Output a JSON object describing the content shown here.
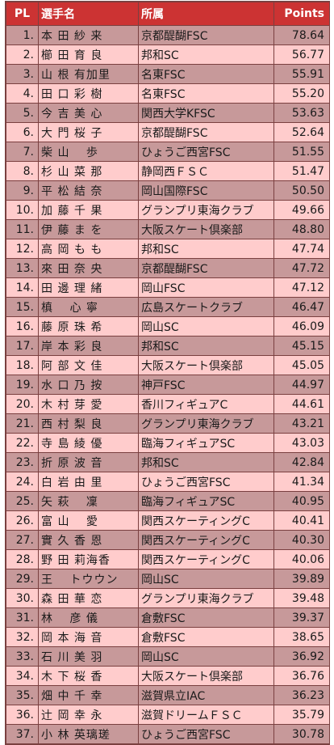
{
  "headers": {
    "pl": "PL",
    "name": "選手名",
    "club": "所属",
    "points": "Points"
  },
  "rows": [
    {
      "pl": "1.",
      "name": "本 田 紗 来",
      "club": "京都醍醐FSC",
      "points": "78.64"
    },
    {
      "pl": "2.",
      "name": "櫛 田 育 良",
      "club": "邦和SC",
      "points": "56.77"
    },
    {
      "pl": "3.",
      "name": "山 根 有加里",
      "club": "名東FSC",
      "points": "55.91"
    },
    {
      "pl": "4.",
      "name": "田 口 彩 樹",
      "club": "名東FSC",
      "points": "55.20"
    },
    {
      "pl": "5.",
      "name": "今 吉 美 心",
      "club": "関西大学KFSC",
      "points": "53.63"
    },
    {
      "pl": "6.",
      "name": "大 門 桜 子",
      "club": "京都醍醐FSC",
      "points": "52.64"
    },
    {
      "pl": "7.",
      "name": "柴 山　 歩",
      "club": "ひょうご西宮FSC",
      "points": "51.55"
    },
    {
      "pl": "8.",
      "name": "杉 山 菜 那",
      "club": "静岡西ＦＳＣ",
      "points": "51.47"
    },
    {
      "pl": "9.",
      "name": "平 松 結 奈",
      "club": "岡山国際FSC",
      "points": "50.50"
    },
    {
      "pl": "10.",
      "name": "加 藤 千 果",
      "club": "グランプリ東海クラブ",
      "points": "49.66"
    },
    {
      "pl": "11.",
      "name": "伊 藤 ま を",
      "club": "大阪スケート倶楽部",
      "points": "48.80"
    },
    {
      "pl": "12.",
      "name": "高 岡 も も",
      "club": "邦和SC",
      "points": "47.74"
    },
    {
      "pl": "13.",
      "name": "來 田 奈 央",
      "club": "京都醍醐FSC",
      "points": "47.72"
    },
    {
      "pl": "14.",
      "name": "田 邊 理 緒",
      "club": "岡山FSC",
      "points": "47.12"
    },
    {
      "pl": "15.",
      "name": "槙　 心 寧",
      "club": "広島スケートクラブ",
      "points": "46.47"
    },
    {
      "pl": "16.",
      "name": "藤 原 珠 希",
      "club": "岡山SC",
      "points": "46.09"
    },
    {
      "pl": "17.",
      "name": "岸 本 彩 良",
      "club": "邦和SC",
      "points": "45.15"
    },
    {
      "pl": "18.",
      "name": "阿 部 文 佳",
      "club": "大阪スケート倶楽部",
      "points": "45.05"
    },
    {
      "pl": "19.",
      "name": "水 口 乃 按",
      "club": "神戸FSC",
      "points": "44.97"
    },
    {
      "pl": "20.",
      "name": "木 村 芽 愛",
      "club": "香川フィギュアC",
      "points": "44.61"
    },
    {
      "pl": "21.",
      "name": "西 村 梨 良",
      "club": "グランプリ東海クラブ",
      "points": "43.21"
    },
    {
      "pl": "22.",
      "name": "寺 島 綾 優",
      "club": "臨海フィギュアSC",
      "points": "43.03"
    },
    {
      "pl": "23.",
      "name": "折 原 波 音",
      "club": "邦和SC",
      "points": "42.84"
    },
    {
      "pl": "24.",
      "name": "白 岩 由 里",
      "club": "ひょうご西宮FSC",
      "points": "41.34"
    },
    {
      "pl": "25.",
      "name": "矢 萩　 凜",
      "club": "臨海フィギュアSC",
      "points": "40.95"
    },
    {
      "pl": "26.",
      "name": "富 山　 愛",
      "club": "関西スケーティングC",
      "points": "40.41"
    },
    {
      "pl": "27.",
      "name": "實 久 香 恩",
      "club": "関西スケーティングC",
      "points": "40.30"
    },
    {
      "pl": "28.",
      "name": "野 田 莉海香",
      "club": "関西スケーティングC",
      "points": "40.06"
    },
    {
      "pl": "29.",
      "name": "王　 トウウン",
      "club": "岡山SC",
      "points": "39.89"
    },
    {
      "pl": "30.",
      "name": "森 田 華 恋",
      "club": "グランプリ東海クラブ",
      "points": "39.48"
    },
    {
      "pl": "31.",
      "name": "林　 彦 儀",
      "club": "倉敷FSC",
      "points": "39.37"
    },
    {
      "pl": "32.",
      "name": "岡 本 海 音",
      "club": "倉敷FSC",
      "points": "38.65"
    },
    {
      "pl": "33.",
      "name": "石 川 美 羽",
      "club": "岡山SC",
      "points": "36.92"
    },
    {
      "pl": "34.",
      "name": "木 下 桜 香",
      "club": "大阪スケート倶楽部",
      "points": "36.76"
    },
    {
      "pl": "35.",
      "name": "畑 中 千 幸",
      "club": "滋賀県立IAC",
      "points": "36.23"
    },
    {
      "pl": "36.",
      "name": "辻 岡 幸 永",
      "club": "滋賀ドリームＦＳＣ",
      "points": "35.79"
    },
    {
      "pl": "37.",
      "name": "小 林 英璃瑳",
      "club": "ひょうご西宮FSC",
      "points": "30.78"
    }
  ],
  "colors": {
    "header_bg": "#cc3333",
    "header_text": "#ffffff",
    "row_odd_bg": "#c7999a",
    "row_even_bg": "#ffcccc",
    "border": "#7a4040"
  }
}
